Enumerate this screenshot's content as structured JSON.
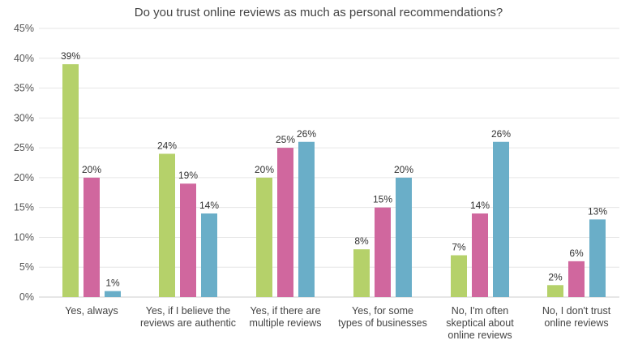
{
  "chart_data": {
    "type": "bar",
    "title": "Do you trust online reviews as much as personal recommendations?",
    "xlabel": "",
    "ylabel": "",
    "ylim": [
      0,
      45
    ],
    "yticks": [
      "0%",
      "5%",
      "10%",
      "15%",
      "20%",
      "25%",
      "30%",
      "35%",
      "40%",
      "45%"
    ],
    "ytick_values": [
      0,
      5,
      10,
      15,
      20,
      25,
      30,
      35,
      40,
      45
    ],
    "grid": true,
    "legend": "none",
    "categories": [
      [
        "Yes, always"
      ],
      [
        "Yes, if I believe the",
        "reviews are authentic"
      ],
      [
        "Yes, if there are",
        "multiple reviews"
      ],
      [
        "Yes, for some",
        "types of businesses"
      ],
      [
        "No, I'm often",
        "skeptical about",
        "online reviews"
      ],
      [
        "No, I don't trust",
        "online reviews"
      ]
    ],
    "series": [
      {
        "values": [
          39,
          24,
          20,
          8,
          7,
          2
        ],
        "labels": [
          "39%",
          "24%",
          "20%",
          "8%",
          "7%",
          "2%"
        ],
        "color": "#b5d16a"
      },
      {
        "values": [
          20,
          19,
          25,
          15,
          14,
          6
        ],
        "labels": [
          "20%",
          "19%",
          "25%",
          "15%",
          "14%",
          "6%"
        ],
        "color": "#d0679e"
      },
      {
        "values": [
          1,
          14,
          26,
          20,
          26,
          13
        ],
        "labels": [
          "1%",
          "14%",
          "26%",
          "20%",
          "26%",
          "13%"
        ],
        "color": "#6aaec8"
      }
    ],
    "grid_color": "#e6e6e6",
    "axis_color": "#cccccc"
  }
}
